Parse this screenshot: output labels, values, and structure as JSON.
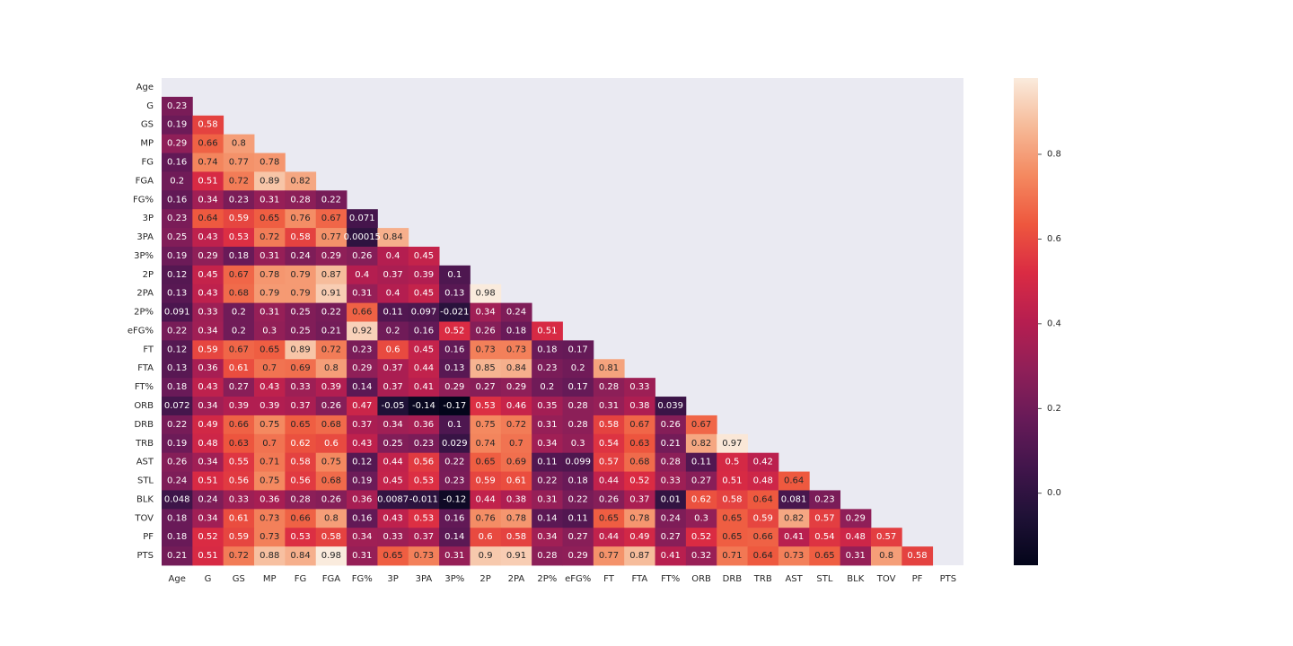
{
  "chart_data": {
    "type": "heatmap",
    "title": "",
    "xlabel": "",
    "ylabel": "",
    "mask": "upper-triangle-including-diagonal",
    "labels": [
      "Age",
      "G",
      "GS",
      "MP",
      "FG",
      "FGA",
      "FG%",
      "3P",
      "3PA",
      "3P%",
      "2P",
      "2PA",
      "2P%",
      "eFG%",
      "FT",
      "FTA",
      "FT%",
      "ORB",
      "DRB",
      "TRB",
      "AST",
      "STL",
      "BLK",
      "TOV",
      "PF",
      "PTS"
    ],
    "rows": [
      [],
      [
        "0.23"
      ],
      [
        "0.19",
        "0.58"
      ],
      [
        "0.29",
        "0.66",
        "0.8"
      ],
      [
        "0.16",
        "0.74",
        "0.77",
        "0.78"
      ],
      [
        "0.2",
        "0.51",
        "0.72",
        "0.89",
        "0.82"
      ],
      [
        "0.16",
        "0.34",
        "0.23",
        "0.31",
        "0.28",
        "0.22"
      ],
      [
        "0.23",
        "0.64",
        "0.59",
        "0.65",
        "0.76",
        "0.67",
        "0.071"
      ],
      [
        "0.25",
        "0.43",
        "0.53",
        "0.72",
        "0.58",
        "0.77",
        "0.00015",
        "0.84"
      ],
      [
        "0.19",
        "0.29",
        "0.18",
        "0.31",
        "0.24",
        "0.29",
        "0.26",
        "0.4",
        "0.45"
      ],
      [
        "0.12",
        "0.45",
        "0.67",
        "0.78",
        "0.79",
        "0.87",
        "0.4",
        "0.37",
        "0.39",
        "0.1"
      ],
      [
        "0.13",
        "0.43",
        "0.68",
        "0.79",
        "0.79",
        "0.91",
        "0.31",
        "0.4",
        "0.45",
        "0.13",
        "0.98"
      ],
      [
        "0.091",
        "0.33",
        "0.2",
        "0.31",
        "0.25",
        "0.22",
        "0.66",
        "0.11",
        "0.097",
        "-0.021",
        "0.34",
        "0.24"
      ],
      [
        "0.22",
        "0.34",
        "0.2",
        "0.3",
        "0.25",
        "0.21",
        "0.92",
        "0.2",
        "0.16",
        "0.52",
        "0.26",
        "0.18",
        "0.51"
      ],
      [
        "0.12",
        "0.59",
        "0.67",
        "0.65",
        "0.89",
        "0.72",
        "0.23",
        "0.6",
        "0.45",
        "0.16",
        "0.73",
        "0.73",
        "0.18",
        "0.17"
      ],
      [
        "0.13",
        "0.36",
        "0.61",
        "0.7",
        "0.69",
        "0.8",
        "0.29",
        "0.37",
        "0.44",
        "0.13",
        "0.85",
        "0.84",
        "0.23",
        "0.2",
        "0.81"
      ],
      [
        "0.18",
        "0.43",
        "0.27",
        "0.43",
        "0.33",
        "0.39",
        "0.14",
        "0.37",
        "0.41",
        "0.29",
        "0.27",
        "0.29",
        "0.2",
        "0.17",
        "0.28",
        "0.33"
      ],
      [
        "0.072",
        "0.34",
        "0.39",
        "0.39",
        "0.37",
        "0.26",
        "0.47",
        "-0.05",
        "-0.14",
        "-0.17",
        "0.53",
        "0.46",
        "0.35",
        "0.28",
        "0.31",
        "0.38",
        "0.039"
      ],
      [
        "0.22",
        "0.49",
        "0.66",
        "0.75",
        "0.65",
        "0.68",
        "0.37",
        "0.34",
        "0.36",
        "0.1",
        "0.75",
        "0.72",
        "0.31",
        "0.28",
        "0.58",
        "0.67",
        "0.26",
        "0.67"
      ],
      [
        "0.19",
        "0.48",
        "0.63",
        "0.7",
        "0.62",
        "0.6",
        "0.43",
        "0.25",
        "0.23",
        "0.029",
        "0.74",
        "0.7",
        "0.34",
        "0.3",
        "0.54",
        "0.63",
        "0.21",
        "0.82",
        "0.97"
      ],
      [
        "0.26",
        "0.34",
        "0.55",
        "0.71",
        "0.58",
        "0.75",
        "0.12",
        "0.44",
        "0.56",
        "0.22",
        "0.65",
        "0.69",
        "0.11",
        "0.099",
        "0.57",
        "0.68",
        "0.28",
        "0.11",
        "0.5",
        "0.42"
      ],
      [
        "0.24",
        "0.51",
        "0.56",
        "0.75",
        "0.56",
        "0.68",
        "0.19",
        "0.45",
        "0.53",
        "0.23",
        "0.59",
        "0.61",
        "0.22",
        "0.18",
        "0.44",
        "0.52",
        "0.33",
        "0.27",
        "0.51",
        "0.48",
        "0.64"
      ],
      [
        "0.048",
        "0.24",
        "0.33",
        "0.36",
        "0.28",
        "0.26",
        "0.36",
        "0.0087",
        "-0.011",
        "-0.12",
        "0.44",
        "0.38",
        "0.31",
        "0.22",
        "0.26",
        "0.37",
        "0.01",
        "0.62",
        "0.58",
        "0.64",
        "0.081",
        "0.23"
      ],
      [
        "0.18",
        "0.34",
        "0.61",
        "0.73",
        "0.66",
        "0.8",
        "0.16",
        "0.43",
        "0.53",
        "0.16",
        "0.76",
        "0.78",
        "0.14",
        "0.11",
        "0.65",
        "0.78",
        "0.24",
        "0.3",
        "0.65",
        "0.59",
        "0.82",
        "0.57",
        "0.29"
      ],
      [
        "0.18",
        "0.52",
        "0.59",
        "0.73",
        "0.53",
        "0.58",
        "0.34",
        "0.33",
        "0.37",
        "0.14",
        "0.6",
        "0.58",
        "0.34",
        "0.27",
        "0.44",
        "0.49",
        "0.27",
        "0.52",
        "0.65",
        "0.66",
        "0.41",
        "0.54",
        "0.48",
        "0.57"
      ],
      [
        "0.21",
        "0.51",
        "0.72",
        "0.88",
        "0.84",
        "0.98",
        "0.31",
        "0.65",
        "0.73",
        "0.31",
        "0.9",
        "0.91",
        "0.28",
        "0.29",
        "0.77",
        "0.87",
        "0.41",
        "0.32",
        "0.71",
        "0.64",
        "0.73",
        "0.65",
        "0.31",
        "0.8",
        "0.58"
      ]
    ],
    "colorbar": {
      "min": -0.17,
      "max": 0.98,
      "ticks": [
        "0.0",
        "0.2",
        "0.4",
        "0.6",
        "0.8"
      ],
      "colormap": "rocket"
    },
    "colors": {
      "plot_background": "#eaeaf2",
      "text_on_dark": "#ffffff",
      "text_on_light": "#262626"
    }
  }
}
